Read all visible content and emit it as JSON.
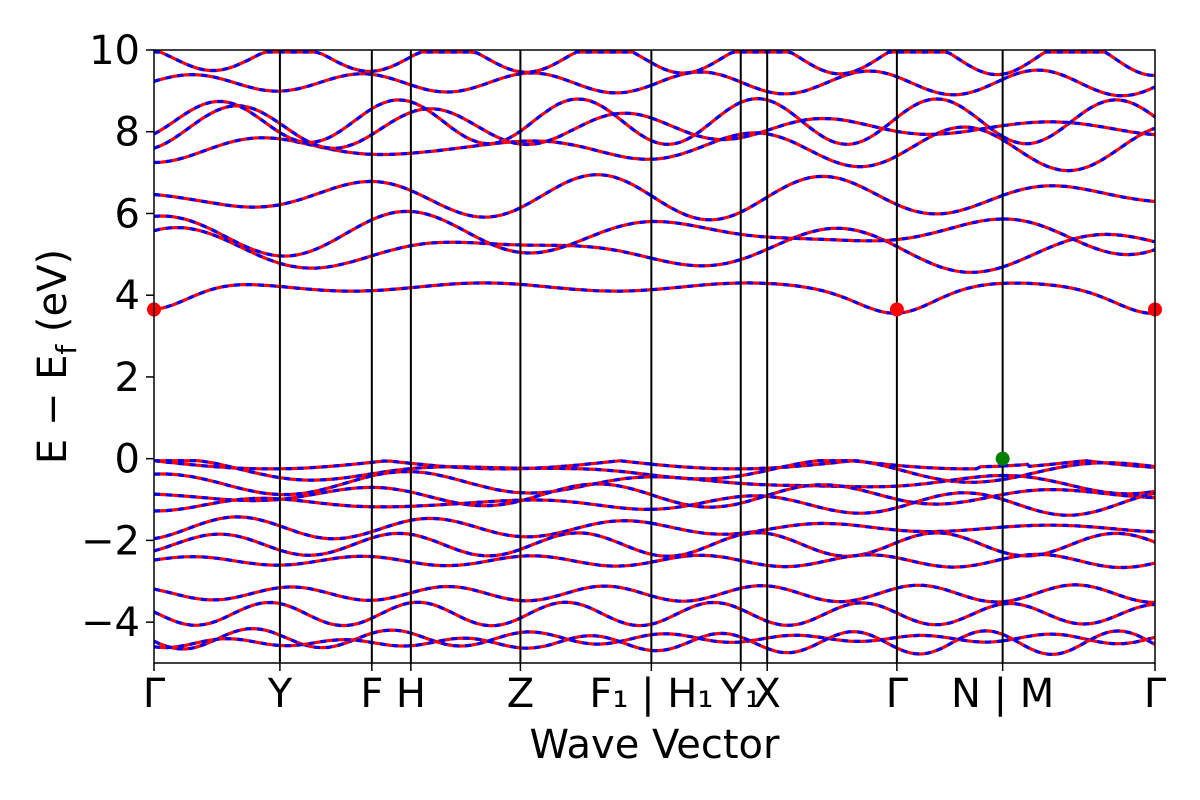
{
  "chart_data": {
    "type": "line",
    "title": "",
    "xlabel": "Wave Vector",
    "ylabel": "E − E_f (eV)",
    "ylabel_parts": {
      "base": "E − E",
      "sub": "f",
      "unit": "(eV)"
    },
    "ylim": [
      -5,
      10
    ],
    "yticks": [
      -4,
      -2,
      0,
      2,
      4,
      6,
      8,
      10
    ],
    "ytick_labels": [
      "−4",
      "−2",
      "0",
      "2",
      "4",
      "6",
      "8",
      "10"
    ],
    "kpath_segments": [
      {
        "from": "Γ",
        "to": "Y",
        "length": 1.0
      },
      {
        "from": "Y",
        "to": "F",
        "length": 0.73
      },
      {
        "from": "F",
        "to": "H",
        "length": 0.31
      },
      {
        "from": "H",
        "to": "Z",
        "length": 0.87
      },
      {
        "from": "Z",
        "to": "F₁",
        "length": 1.04
      },
      {
        "from": "H₁",
        "to": "Y₁",
        "length": 0.71
      },
      {
        "from": "Y₁",
        "to": "X",
        "length": 0.21
      },
      {
        "from": "X",
        "to": "Γ",
        "length": 1.03
      },
      {
        "from": "Γ",
        "to": "N",
        "length": 0.84
      },
      {
        "from": "M",
        "to": "Γ",
        "length": 1.21
      }
    ],
    "xtick_labels": [
      "Γ",
      "Y",
      "F",
      "H",
      "Z",
      "F₁ | H₁",
      "Y₁",
      "X",
      "Γ",
      "N | M",
      "Γ"
    ],
    "band_edges": {
      "cbm": {
        "energy": 3.65,
        "at": [
          "Γ",
          "Γ",
          "Γ"
        ]
      },
      "vbm": {
        "energy": 0.0,
        "at": [
          "N | M"
        ]
      }
    },
    "conduction_bands_at_gamma": [
      3.65,
      5.1,
      5.5,
      6.4,
      7.6,
      8.1,
      8.25,
      9.2,
      9.8
    ],
    "valence_bands_at_gamma": [
      -0.05,
      -0.3,
      -0.6,
      -0.9,
      -1.1,
      -1.7,
      -2.1,
      -2.5,
      -3.3,
      -3.8,
      -4.4,
      -4.5
    ],
    "series": [
      {
        "name": "",
        "color": "#ff0000",
        "style": "solid"
      },
      {
        "name": "",
        "color": "#0000ff",
        "style": "dashed"
      }
    ],
    "grid": false
  },
  "colors": {
    "spin_up": "#ff0000",
    "spin_down": "#0000ff",
    "cbm_marker": "#ff0000",
    "vbm_marker": "#008000",
    "axes": "#000000"
  }
}
